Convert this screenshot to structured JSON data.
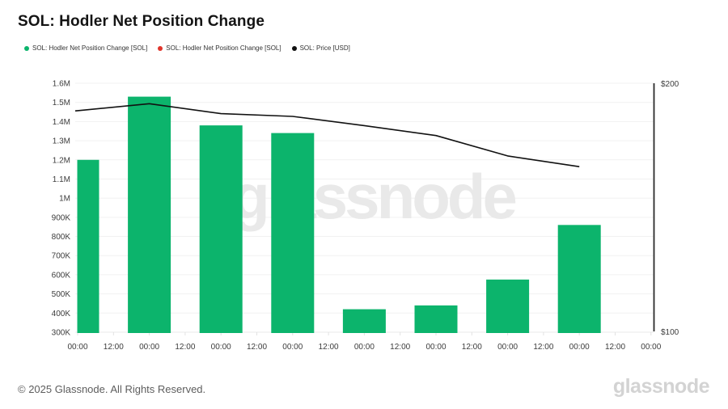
{
  "header": {
    "title": "SOL: Hodler Net Position Change"
  },
  "legend": {
    "items": [
      {
        "label": "SOL: Hodler Net Position Change [SOL]",
        "color": "#0cb46c"
      },
      {
        "label": "SOL: Hodler Net Position Change [SOL]",
        "color": "#e0352b"
      },
      {
        "label": "SOL: Price [USD]",
        "color": "#111111"
      }
    ]
  },
  "watermark": {
    "text": "glassnode"
  },
  "footer": {
    "copyright": "© 2025 Glassnode. All Rights Reserved.",
    "brand_logo": "glassnode"
  },
  "chart_data": {
    "type": "bar",
    "title": "SOL: Hodler Net Position Change",
    "grid": "horizontal",
    "legend_position": "top-left",
    "x_tick_labels": [
      "00:00",
      "12:00",
      "00:00",
      "12:00",
      "00:00",
      "12:00",
      "00:00",
      "12:00",
      "00:00",
      "12:00",
      "00:00",
      "12:00",
      "00:00",
      "12:00",
      "00:00",
      "12:00",
      "00:00"
    ],
    "y_left": {
      "tick_labels": [
        "1.6M",
        "1.5M",
        "1.4M",
        "1.3M",
        "1.2M",
        "1.1M",
        "1M",
        "900K",
        "800K",
        "700K",
        "600K",
        "500K",
        "400K",
        "300K"
      ],
      "min": 300000,
      "max": 1600000
    },
    "y_right": {
      "tick_labels": [
        "$200",
        "$100"
      ],
      "min": 100,
      "max": 200
    },
    "series": [
      {
        "name": "SOL: Hodler Net Position Change [SOL]",
        "type": "bar",
        "axis": "left",
        "color": "#0cb46c",
        "values": [
          1200000,
          1530000,
          1380000,
          1340000,
          420000,
          440000,
          575000,
          860000
        ]
      },
      {
        "name": "SOL: Price [USD]",
        "type": "line",
        "axis": "right",
        "color": "#111111",
        "values": [
          189,
          191.8,
          187.8,
          186.7,
          183,
          179,
          170.8,
          166.5
        ]
      }
    ]
  }
}
